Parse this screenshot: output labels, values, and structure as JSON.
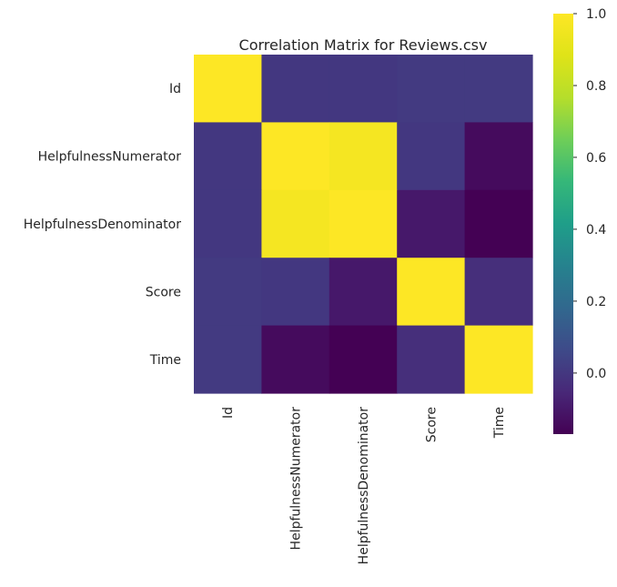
{
  "chart_data": {
    "type": "heatmap",
    "title": "Correlation Matrix for Reviews.csv",
    "row_labels": [
      "Id",
      "HelpfulnessNumerator",
      "HelpfulnessDenominator",
      "Score",
      "Time"
    ],
    "col_labels": [
      "Id",
      "HelpfulnessNumerator",
      "HelpfulnessDenominator",
      "Score",
      "Time"
    ],
    "values": [
      [
        1.0,
        0.0,
        0.0,
        0.01,
        0.01
      ],
      [
        0.0,
        1.0,
        0.97,
        0.0,
        -0.14
      ],
      [
        0.0,
        0.97,
        1.0,
        -0.1,
        -0.17
      ],
      [
        0.01,
        0.0,
        -0.1,
        1.0,
        -0.03
      ],
      [
        0.01,
        -0.14,
        -0.17,
        -0.03,
        1.0
      ]
    ],
    "colormap": "viridis",
    "vmin": -0.17,
    "vmax": 1.0,
    "colorbar_ticks": [
      "0.0",
      "0.2",
      "0.4",
      "0.6",
      "0.8",
      "1.0"
    ],
    "colorbar_tick_values": [
      0.0,
      0.2,
      0.4,
      0.6,
      0.8,
      1.0
    ],
    "grid": false
  }
}
